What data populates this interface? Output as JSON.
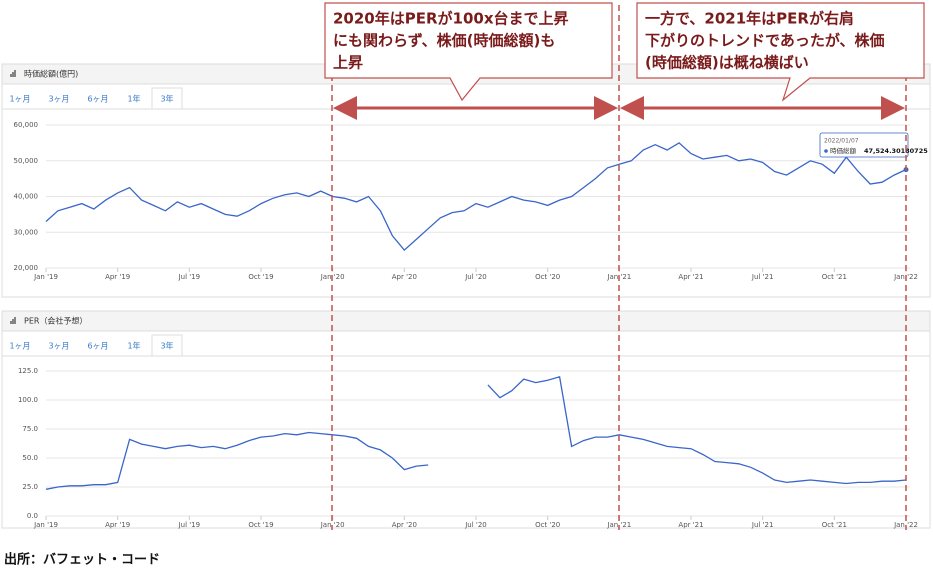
{
  "chart_data": [
    {
      "type": "line",
      "title": "時価総額(億円)",
      "tabs": [
        "1ヶ月",
        "3ヶ月",
        "6ヶ月",
        "1年",
        "3年"
      ],
      "x": [
        0,
        0.5,
        1,
        1.5,
        2,
        2.5,
        3,
        3.5,
        4,
        4.5,
        5,
        5.5,
        6,
        6.5,
        7,
        7.5,
        8,
        8.5,
        9,
        9.5,
        10,
        10.5,
        11,
        11.5,
        12,
        12.5,
        13,
        13.5,
        14,
        14.5,
        15,
        15.5,
        16,
        16.5,
        17,
        17.5,
        18,
        18.5,
        19,
        19.5,
        20,
        20.5,
        21,
        21.5,
        22,
        22.5,
        23,
        23.5,
        24,
        24.5,
        25,
        25.5,
        26,
        26.5,
        27,
        27.5,
        28,
        28.5,
        29,
        29.5,
        30,
        30.5,
        31,
        31.5,
        32,
        32.5,
        33,
        33.5,
        34,
        34.5,
        35,
        35.5,
        36
      ],
      "series": [
        {
          "name": "時価総額",
          "color": "#3a66c9",
          "values": [
            33000,
            36000,
            37000,
            38000,
            36500,
            39000,
            41000,
            42500,
            39000,
            37500,
            36000,
            38500,
            37000,
            38000,
            36500,
            35000,
            34500,
            36000,
            38000,
            39500,
            40500,
            41000,
            40000,
            41500,
            40000,
            39500,
            38500,
            40000,
            36000,
            29000,
            25000,
            28000,
            31000,
            34000,
            35500,
            36000,
            38000,
            37000,
            38500,
            40000,
            39000,
            38500,
            37500,
            39000,
            40000,
            42500,
            45000,
            48000,
            49000,
            50000,
            53000,
            54500,
            53000,
            55000,
            52000,
            50500,
            51000,
            51500,
            50000,
            50500,
            49500,
            47000,
            46000,
            48000,
            50000,
            49000,
            46500,
            51000,
            47000,
            43500,
            44000,
            46000,
            47524.30180725
          ]
        }
      ],
      "xlim": [
        0,
        36
      ],
      "xticks": [
        {
          "value": 0,
          "label": "Jan '19"
        },
        {
          "value": 3,
          "label": "Apr '19"
        },
        {
          "value": 6,
          "label": "Jul '19"
        },
        {
          "value": 9,
          "label": "Oct '19"
        },
        {
          "value": 12,
          "label": "Jan '20"
        },
        {
          "value": 15,
          "label": "Apr '20"
        },
        {
          "value": 18,
          "label": "Jul '20"
        },
        {
          "value": 21,
          "label": "Oct '20"
        },
        {
          "value": 24,
          "label": "Jan '21"
        },
        {
          "value": 27,
          "label": "Apr '21"
        },
        {
          "value": 30,
          "label": "Jul '21"
        },
        {
          "value": 33,
          "label": "Oct '21"
        },
        {
          "value": 36,
          "label": "Jan '22"
        }
      ],
      "ylim": [
        20000,
        60000
      ],
      "yticks": [
        {
          "value": 20000,
          "label": "20,000"
        },
        {
          "value": 30000,
          "label": "30,000"
        },
        {
          "value": 40000,
          "label": "40,000"
        },
        {
          "value": 50000,
          "label": "50,000"
        },
        {
          "value": 60000,
          "label": "60,000"
        }
      ],
      "grid": true,
      "tooltip": {
        "date": "2022/01/07",
        "series_label": "時価総額",
        "value_label": "47,524.30180725"
      }
    },
    {
      "type": "line",
      "title": "PER（会社予想）",
      "tabs": [
        "1ヶ月",
        "3ヶ月",
        "6ヶ月",
        "1年",
        "3年"
      ],
      "x": [
        0,
        0.5,
        1,
        1.5,
        2,
        2.5,
        3,
        3.5,
        4,
        4.5,
        5,
        5.5,
        6,
        6.5,
        7,
        7.5,
        8,
        8.5,
        9,
        9.5,
        10,
        10.5,
        11,
        11.5,
        12,
        12.5,
        13,
        13.5,
        14,
        14.5,
        15,
        15.5,
        16,
        16.5,
        17,
        17.5,
        18,
        18.5,
        19,
        19.5,
        20,
        20.5,
        21,
        21.5,
        22,
        22.5,
        23,
        23.5,
        24,
        24.5,
        25,
        25.5,
        26,
        26.5,
        27,
        27.5,
        28,
        28.5,
        29,
        29.5,
        30,
        30.5,
        31,
        31.5,
        32,
        32.5,
        33,
        33.5,
        34,
        34.5,
        35,
        35.5,
        36
      ],
      "series": [
        {
          "name": "PER",
          "color": "#3a66c9",
          "values": [
            23,
            25,
            26,
            26,
            27,
            27,
            29,
            66,
            62,
            60,
            58,
            60,
            61,
            59,
            60,
            58,
            61,
            65,
            68,
            69,
            71,
            70,
            72,
            71,
            70,
            69,
            67,
            60,
            57,
            50,
            40,
            43,
            44,
            null,
            null,
            null,
            null,
            113,
            102,
            108,
            118,
            115,
            117,
            120,
            60,
            65,
            68,
            68,
            70,
            68,
            66,
            63,
            60,
            59,
            58,
            53,
            47,
            46,
            45,
            42,
            37,
            31,
            29,
            30,
            31,
            30,
            29,
            28,
            29,
            29,
            30,
            30,
            31
          ]
        }
      ],
      "xlim": [
        0,
        36
      ],
      "xticks": [
        {
          "value": 0,
          "label": "Jan '19"
        },
        {
          "value": 3,
          "label": "Apr '19"
        },
        {
          "value": 6,
          "label": "Jul '19"
        },
        {
          "value": 9,
          "label": "Oct '19"
        },
        {
          "value": 12,
          "label": "Jan '20"
        },
        {
          "value": 15,
          "label": "Apr '20"
        },
        {
          "value": 18,
          "label": "Jul '20"
        },
        {
          "value": 21,
          "label": "Oct '20"
        },
        {
          "value": 24,
          "label": "Jan '21"
        },
        {
          "value": 27,
          "label": "Apr '21"
        },
        {
          "value": 30,
          "label": "Jul '21"
        },
        {
          "value": 33,
          "label": "Oct '21"
        },
        {
          "value": 36,
          "label": "Jan '22"
        }
      ],
      "ylim": [
        0,
        125
      ],
      "yticks": [
        {
          "value": 0,
          "label": "0.0"
        },
        {
          "value": 25,
          "label": "25.0"
        },
        {
          "value": 50,
          "label": "50.0"
        },
        {
          "value": 75,
          "label": "75.0"
        },
        {
          "value": 100,
          "label": "100.0"
        },
        {
          "value": 125,
          "label": "125.0"
        }
      ],
      "grid": true
    }
  ],
  "annotations": [
    [
      "2020年はPERが100x台まで上昇",
      "にも関わらず、株価(時価総額)も",
      "上昇"
    ],
    [
      "一方で、2021年はPERが右肩",
      "下がりのトレンドであったが、株価",
      "(時価総額)は概ね横ばい"
    ]
  ],
  "source": "出所：バフェット・コード"
}
